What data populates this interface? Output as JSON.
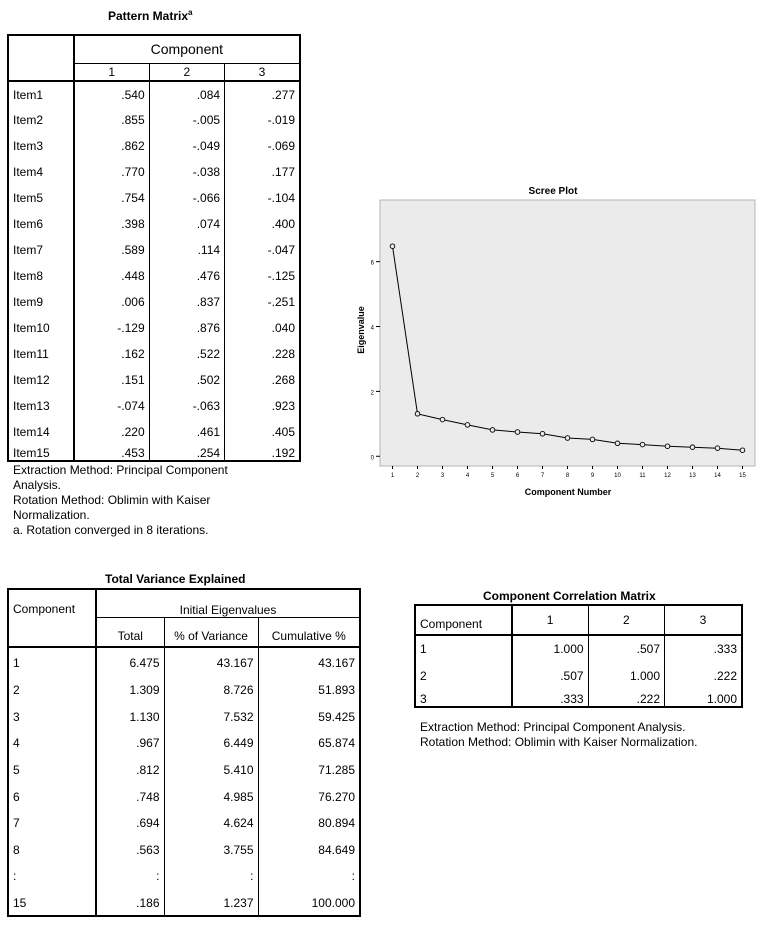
{
  "pattern": {
    "title": "Pattern Matrix",
    "title_sup": "a",
    "header": "Component",
    "cols": [
      "1",
      "2",
      "3"
    ],
    "rows": [
      {
        "label": "Item1",
        "values": [
          ".540",
          ".084",
          ".277"
        ]
      },
      {
        "label": "Item2",
        "values": [
          ".855",
          "-.005",
          "-.019"
        ]
      },
      {
        "label": "Item3",
        "values": [
          ".862",
          "-.049",
          "-.069"
        ]
      },
      {
        "label": "Item4",
        "values": [
          ".770",
          "-.038",
          ".177"
        ]
      },
      {
        "label": "Item5",
        "values": [
          ".754",
          "-.066",
          "-.104"
        ]
      },
      {
        "label": "Item6",
        "values": [
          ".398",
          ".074",
          ".400"
        ]
      },
      {
        "label": "Item7",
        "values": [
          ".589",
          ".114",
          "-.047"
        ]
      },
      {
        "label": "Item8",
        "values": [
          ".448",
          ".476",
          "-.125"
        ]
      },
      {
        "label": "Item9",
        "values": [
          ".006",
          ".837",
          "-.251"
        ]
      },
      {
        "label": "Item10",
        "values": [
          "-.129",
          ".876",
          ".040"
        ]
      },
      {
        "label": "Item11",
        "values": [
          ".162",
          ".522",
          ".228"
        ]
      },
      {
        "label": "Item12",
        "values": [
          ".151",
          ".502",
          ".268"
        ]
      },
      {
        "label": "Item13",
        "values": [
          "-.074",
          "-.063",
          ".923"
        ]
      },
      {
        "label": "Item14",
        "values": [
          ".220",
          ".461",
          ".405"
        ]
      },
      {
        "label": "Item15",
        "values": [
          ".453",
          ".254",
          ".192"
        ]
      }
    ],
    "notes": [
      "Extraction Method: Principal Component",
      "Analysis.",
      "Rotation Method: Oblimin with Kaiser",
      "Normalization.",
      "a. Rotation converged in 8 iterations."
    ]
  },
  "variance": {
    "title": "Total Variance Explained",
    "component_header": "Component",
    "group_header": "Initial Eigenvalues",
    "cols": [
      "Total",
      "% of Variance",
      "Cumulative %"
    ],
    "rows": [
      {
        "c": "1",
        "total": "6.475",
        "pct": "43.167",
        "cum": "43.167"
      },
      {
        "c": "2",
        "total": "1.309",
        "pct": "8.726",
        "cum": "51.893"
      },
      {
        "c": "3",
        "total": "1.130",
        "pct": "7.532",
        "cum": "59.425"
      },
      {
        "c": "4",
        "total": ".967",
        "pct": "6.449",
        "cum": "65.874"
      },
      {
        "c": "5",
        "total": ".812",
        "pct": "5.410",
        "cum": "71.285"
      },
      {
        "c": "6",
        "total": ".748",
        "pct": "4.985",
        "cum": "76.270"
      },
      {
        "c": "7",
        "total": ".694",
        "pct": "4.624",
        "cum": "80.894"
      },
      {
        "c": "8",
        "total": ".563",
        "pct": "3.755",
        "cum": "84.649"
      },
      {
        "c": ":",
        "total": ":",
        "pct": ":",
        "cum": ":"
      },
      {
        "c": "15",
        "total": ".186",
        "pct": "1.237",
        "cum": "100.000"
      }
    ]
  },
  "correlation": {
    "title": "Component Correlation Matrix",
    "header": "Component",
    "cols": [
      "1",
      "2",
      "3"
    ],
    "rows": [
      {
        "label": "1",
        "values": [
          "1.000",
          ".507",
          ".333"
        ]
      },
      {
        "label": "2",
        "values": [
          ".507",
          "1.000",
          ".222"
        ]
      },
      {
        "label": "3",
        "values": [
          ".333",
          ".222",
          "1.000"
        ]
      }
    ],
    "notes": [
      "Extraction Method: Principal Component Analysis.",
      "Rotation Method: Oblimin with Kaiser Normalization."
    ]
  },
  "chart_data": {
    "type": "line",
    "title": "Scree Plot",
    "xlabel": "Component Number",
    "ylabel": "Eigenvalue",
    "x": [
      1,
      2,
      3,
      4,
      5,
      6,
      7,
      8,
      9,
      10,
      11,
      12,
      13,
      14,
      15
    ],
    "values": [
      6.475,
      1.309,
      1.13,
      0.967,
      0.812,
      0.748,
      0.694,
      0.563,
      0.52,
      0.4,
      0.36,
      0.31,
      0.28,
      0.25,
      0.186
    ],
    "xlim": [
      0.5,
      15.5
    ],
    "ylim": [
      -0.3,
      7.9
    ],
    "yticks": [
      0,
      2,
      4,
      6
    ],
    "grid": false,
    "marker": "open-circle",
    "colors": {
      "plot_bg": "#ebebeb",
      "line": "#000000"
    }
  }
}
